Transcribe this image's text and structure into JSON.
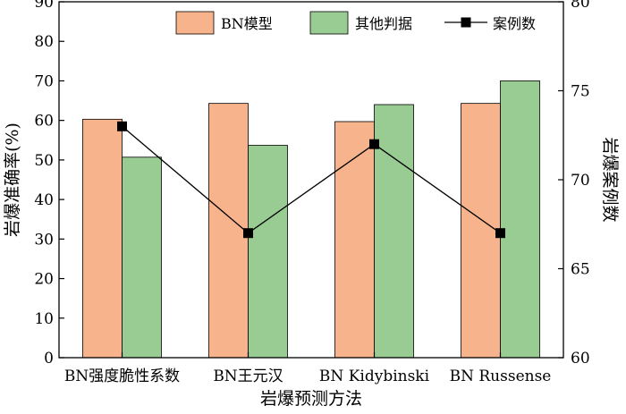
{
  "chart_data": {
    "type": "bar",
    "title": "",
    "xlabel": "岩爆预测方法",
    "ylabel": "岩爆准确率(%)",
    "y2label": "岩爆案例数",
    "categories": [
      "BN强度脆性系数",
      "BN王元汉",
      "BN Kidybinski",
      "BN Russense"
    ],
    "ylim": [
      0,
      90
    ],
    "yticks": [
      0,
      10,
      20,
      30,
      40,
      50,
      60,
      70,
      80,
      90
    ],
    "y2lim": [
      60,
      80
    ],
    "y2ticks": [
      60,
      65,
      70,
      75,
      80
    ],
    "series": [
      {
        "name": "BN模型",
        "kind": "bar",
        "axis": "left",
        "color": "#f7b48c",
        "values": [
          60.3,
          64.3,
          59.7,
          64.3
        ]
      },
      {
        "name": "其他判据",
        "kind": "bar",
        "axis": "left",
        "color": "#98cc93",
        "values": [
          50.7,
          53.7,
          64.0,
          70.0
        ]
      },
      {
        "name": "案例数",
        "kind": "line",
        "axis": "right",
        "color": "#000000",
        "marker": "square",
        "values": [
          73,
          67,
          72,
          67
        ]
      }
    ],
    "legend_position": "top-right",
    "grid": false
  }
}
